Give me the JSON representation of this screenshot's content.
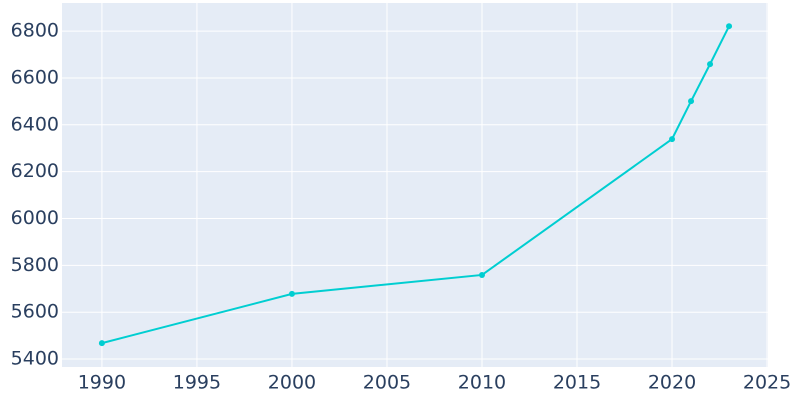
{
  "chart_data": {
    "type": "line",
    "x": [
      1990,
      2000,
      2010,
      2020,
      2021,
      2022,
      2023
    ],
    "series": [
      {
        "color": "#00ced1",
        "values": [
          5468,
          5678,
          5759,
          6339,
          6501,
          6659,
          6821
        ]
      }
    ],
    "xlim": [
      1987.9,
      2025.05
    ],
    "xticks": [
      1990,
      1995,
      2000,
      2005,
      2010,
      2015,
      2020,
      2025
    ],
    "ylim": [
      5366,
      6920
    ],
    "yticks": [
      5400,
      5600,
      5800,
      6000,
      6200,
      6400,
      6600,
      6800
    ],
    "grid": true,
    "markers": true
  }
}
